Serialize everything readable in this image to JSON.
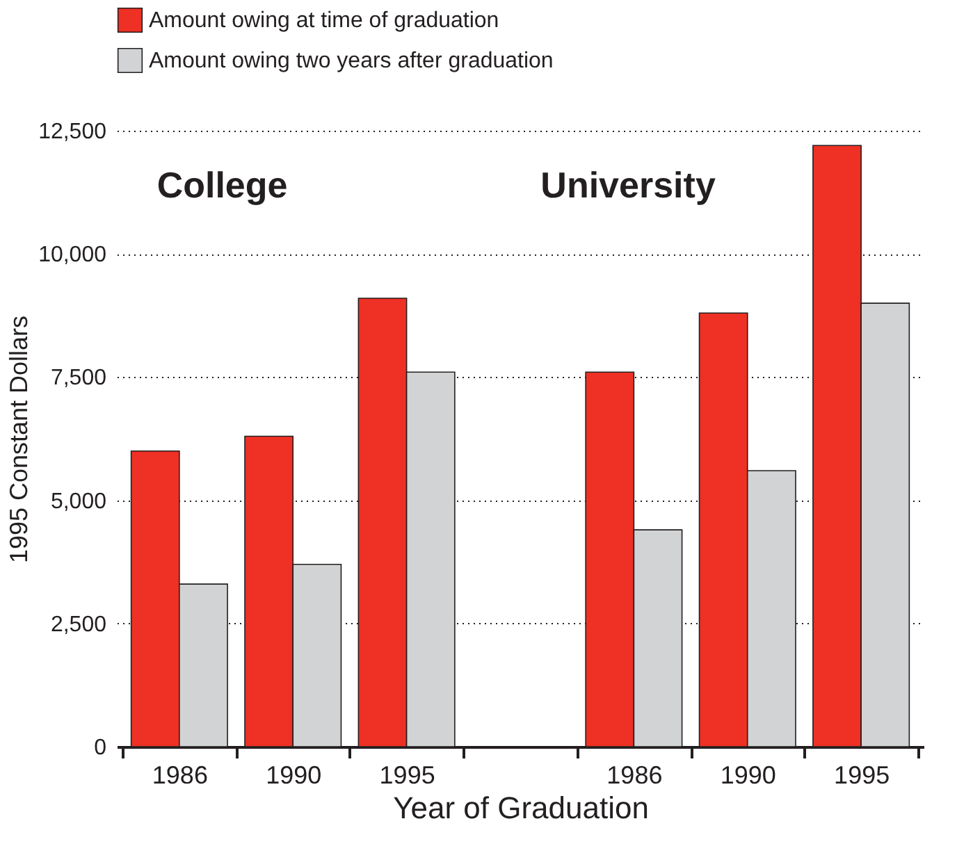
{
  "chart_data": {
    "type": "bar",
    "xlabel": "Year of Graduation",
    "ylabel": "1995 Constant Dollars",
    "categories": [
      "1986",
      "1990",
      "1995",
      null,
      "1986",
      "1990",
      "1995"
    ],
    "series": [
      {
        "name": "Amount owing at time of graduation",
        "color": "#ee3124",
        "values": [
          6000,
          6300,
          9100,
          null,
          7600,
          8800,
          12200
        ]
      },
      {
        "name": "Amount owing two years after graduation",
        "color": "#d1d3d4",
        "values": [
          3300,
          3700,
          7600,
          null,
          4400,
          5600,
          9000
        ]
      }
    ],
    "ylim": [
      0,
      12500
    ],
    "yticks": [
      0,
      {
        "value": 2500,
        "label": "2,500"
      },
      {
        "value": 5000,
        "label": "5,000"
      },
      {
        "value": 7500,
        "label": "7,500"
      },
      {
        "value": 10000,
        "label": "10,000"
      },
      {
        "value": 12500,
        "label": "12,500"
      }
    ],
    "grid": "y",
    "legend": "top",
    "annotations": [
      "College",
      "University"
    ]
  }
}
